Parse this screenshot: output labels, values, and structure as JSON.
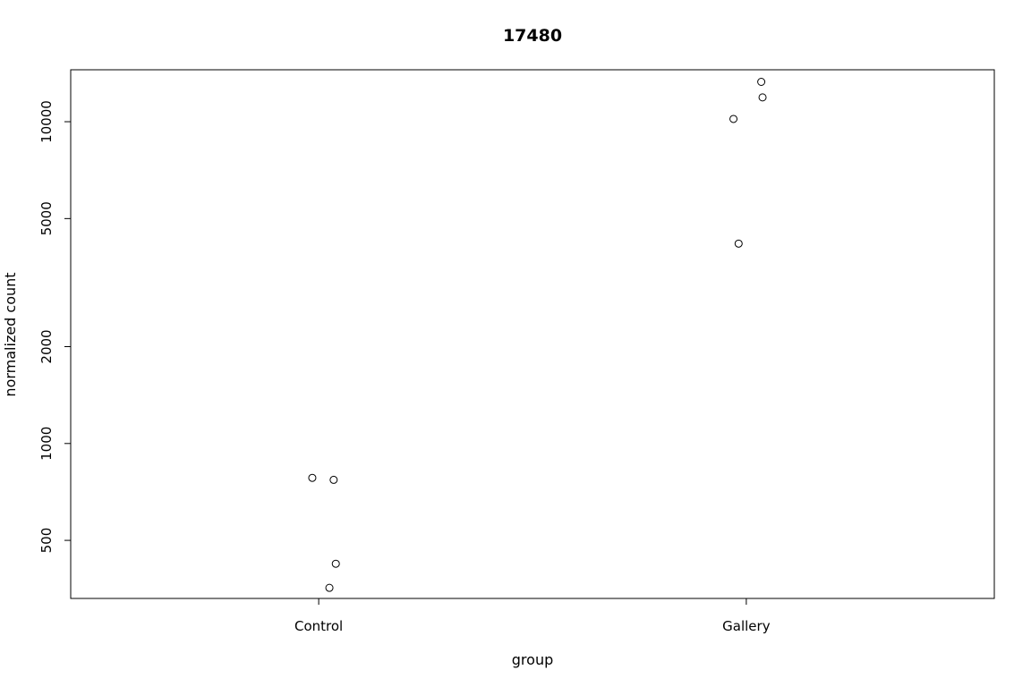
{
  "chart_data": {
    "type": "scatter",
    "title": "17480",
    "xlabel": "group",
    "ylabel": "normalized count",
    "y_scale": "log",
    "ylim": [
      330,
      14500
    ],
    "yticks": [
      500,
      1000,
      2000,
      5000,
      10000
    ],
    "ytick_labels": [
      "500",
      "1000",
      "2000",
      "5000",
      "10000"
    ],
    "categories": [
      "Control",
      "Gallery"
    ],
    "grid": false,
    "legend": "none",
    "series": [
      {
        "category": "Control",
        "jitter": [
          -0.015,
          0.035,
          0.04,
          0.025
        ],
        "values": [
          782,
          771,
          423,
          356
        ]
      },
      {
        "category": "Gallery",
        "jitter": [
          0.035,
          0.038,
          -0.03,
          -0.018
        ],
        "values": [
          13300,
          11900,
          10200,
          4180
        ]
      }
    ]
  }
}
